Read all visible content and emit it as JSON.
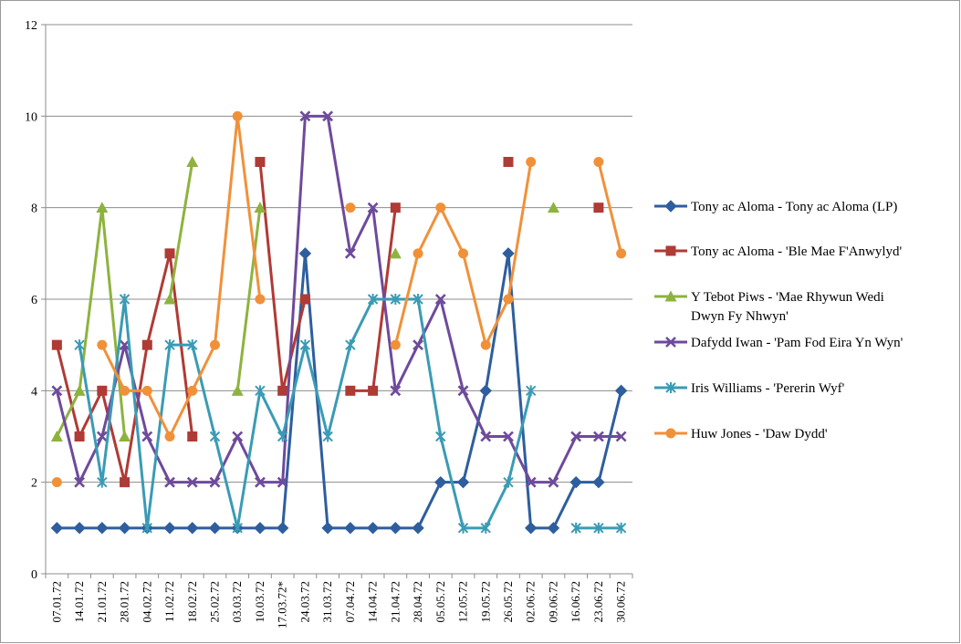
{
  "chart_data": {
    "type": "line",
    "title": "",
    "xlabel": "",
    "ylabel": "",
    "ylim": [
      0,
      12
    ],
    "yticks": [
      0,
      2,
      4,
      6,
      8,
      10,
      12
    ],
    "grid": "horizontal",
    "legend_position": "right",
    "categories": [
      "07.01.72",
      "14.01.72",
      "21.01.72",
      "28.01.72",
      "04.02.72",
      "11.02.72",
      "18.02.72",
      "25.02.72",
      "03.03.72",
      "10.03.72",
      "17.03.72*",
      "24.03.72",
      "31.03.72",
      "07.04.72",
      "14.04.72",
      "21.04.72",
      "28.04.72",
      "05.05.72",
      "12.05.72",
      "19.05.72",
      "26.05.72",
      "02.06.72",
      "09.06.72",
      "16.06.72",
      "23.06.72",
      "30.06.72"
    ],
    "series": [
      {
        "name": "Tony ac Aloma - Tony ac Aloma (LP)",
        "color": "#2E5E9E",
        "marker": "diamond",
        "values": [
          1,
          1,
          1,
          1,
          1,
          1,
          1,
          1,
          1,
          1,
          1,
          7,
          1,
          1,
          1,
          1,
          1,
          2,
          2,
          4,
          7,
          1,
          1,
          2,
          2,
          4
        ]
      },
      {
        "name": "Tony ac Aloma - 'Ble Mae F'Anwylyd'",
        "color": "#B03A35",
        "marker": "square",
        "values": [
          5,
          3,
          4,
          2,
          5,
          7,
          3,
          null,
          null,
          9,
          4,
          6,
          null,
          4,
          4,
          8,
          null,
          null,
          null,
          null,
          9,
          null,
          null,
          null,
          8,
          null
        ]
      },
      {
        "name": "Y Tebot Piws - 'Mae Rhywun Wedi\nDwyn Fy Nhwyn'",
        "color": "#8DB33E",
        "marker": "triangle",
        "values": [
          3,
          4,
          8,
          3,
          null,
          6,
          9,
          null,
          4,
          8,
          null,
          null,
          null,
          null,
          null,
          7,
          null,
          null,
          null,
          null,
          null,
          null,
          8,
          null,
          null,
          null
        ]
      },
      {
        "name": "Dafydd Iwan - 'Pam Fod Eira Yn Wyn'",
        "color": "#6E4A9C",
        "marker": "x",
        "values": [
          4,
          2,
          3,
          5,
          3,
          2,
          2,
          2,
          3,
          2,
          2,
          10,
          10,
          7,
          8,
          4,
          5,
          6,
          4,
          3,
          3,
          2,
          2,
          3,
          3,
          3
        ]
      },
      {
        "name": "Iris Williams - 'Pererin Wyf'",
        "color": "#3A9BB5",
        "marker": "star",
        "values": [
          null,
          5,
          2,
          6,
          1,
          5,
          5,
          3,
          1,
          4,
          3,
          5,
          3,
          5,
          6,
          6,
          6,
          3,
          1,
          1,
          2,
          4,
          null,
          1,
          1,
          1
        ]
      },
      {
        "name": "Huw Jones - 'Daw Dydd'",
        "color": "#F0913A",
        "marker": "circle",
        "values": [
          2,
          null,
          5,
          4,
          4,
          3,
          4,
          5,
          10,
          6,
          null,
          null,
          null,
          8,
          null,
          5,
          7,
          8,
          7,
          5,
          6,
          9,
          null,
          null,
          9,
          7
        ]
      }
    ]
  }
}
